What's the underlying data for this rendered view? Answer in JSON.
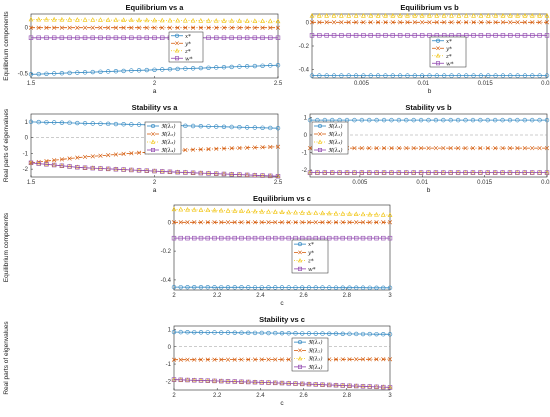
{
  "figure": {
    "colors": [
      "#2E86C1",
      "#D35400",
      "#F1C40F",
      "#8E44AD"
    ],
    "markers": [
      "circle",
      "x",
      "triangle",
      "square"
    ],
    "line_styles": [
      "solid",
      "dashdot",
      "dotted",
      "solid"
    ],
    "zero_line_color": "#999999"
  },
  "chart_data": [
    {
      "type": "line",
      "title": "Equilibrium vs a",
      "xlabel": "a",
      "ylabel": "Equilibrium components",
      "xlim": [
        1.5,
        2.5
      ],
      "ylim": [
        -0.55,
        0.15
      ],
      "xticks": [
        1.5,
        2,
        2.5
      ],
      "xtick_labels": [
        "1.5",
        "2",
        "2.5"
      ],
      "yticks": [
        -0.5,
        0
      ],
      "ytick_labels": [
        "-0.5",
        "0"
      ],
      "zero_line": false,
      "legend_position": "center",
      "series": [
        {
          "name": "x*",
          "x": [
            1.5,
            2.5
          ],
          "y": [
            -0.51,
            -0.41
          ]
        },
        {
          "name": "y*",
          "x": [
            1.5,
            2.5
          ],
          "y": [
            0.0,
            0.0
          ]
        },
        {
          "name": "z*",
          "x": [
            1.5,
            2.5
          ],
          "y": [
            0.09,
            0.07
          ]
        },
        {
          "name": "w*",
          "x": [
            1.5,
            2.5
          ],
          "y": [
            -0.11,
            -0.11
          ]
        }
      ]
    },
    {
      "type": "line",
      "title": "Equilibrium vs b",
      "xlabel": "b",
      "ylabel": "",
      "xlim": [
        0.001,
        0.02
      ],
      "ylim": [
        -0.47,
        0.07
      ],
      "xticks": [
        0.005,
        0.01,
        0.015,
        0.02
      ],
      "xtick_labels": [
        "0.005",
        "0.01",
        "0.015",
        "0.02"
      ],
      "yticks": [
        -0.4,
        -0.2,
        0
      ],
      "ytick_labels": [
        "-0.4",
        "-0.2",
        "0"
      ],
      "zero_line": false,
      "legend_position": "center",
      "series": [
        {
          "name": "x*",
          "x": [
            0.001,
            0.02
          ],
          "y": [
            -0.45,
            -0.45
          ]
        },
        {
          "name": "y*",
          "x": [
            0.001,
            0.02
          ],
          "y": [
            0.0,
            0.0
          ]
        },
        {
          "name": "z*",
          "x": [
            0.001,
            0.02
          ],
          "y": [
            0.055,
            0.055
          ]
        },
        {
          "name": "w*",
          "x": [
            0.001,
            0.02
          ],
          "y": [
            -0.11,
            -0.11
          ]
        }
      ]
    },
    {
      "type": "line",
      "title": "Stability vs a",
      "xlabel": "a",
      "ylabel": "Real parts of eigenvalues",
      "xlim": [
        1.5,
        2.5
      ],
      "ylim": [
        -2.5,
        1.5
      ],
      "xticks": [
        1.5,
        2,
        2.5
      ],
      "xtick_labels": [
        "1.5",
        "2",
        "2.5"
      ],
      "yticks": [
        -2,
        -1,
        0,
        1
      ],
      "ytick_labels": [
        "-2",
        "-1",
        "0",
        "1"
      ],
      "zero_line": true,
      "legend_position": "center-right",
      "series": [
        {
          "name": "ℜ(λ₁)",
          "x": [
            1.5,
            2.5
          ],
          "y": [
            1.0,
            0.6
          ]
        },
        {
          "name": "ℜ(λ₂)",
          "x": [
            1.5,
            1.7,
            1.9,
            2.1,
            2.3,
            2.5
          ],
          "y": [
            -1.6,
            -1.25,
            -1.0,
            -0.8,
            -0.68,
            -0.58
          ]
        },
        {
          "name": "ℜ(λ₃)",
          "x": [
            1.5,
            1.7,
            1.9,
            2.1,
            2.3,
            2.5
          ],
          "y": [
            -1.6,
            -1.9,
            -2.05,
            -2.2,
            -2.32,
            -2.45
          ]
        },
        {
          "name": "ℜ(λ₄)",
          "x": [
            1.5,
            1.7,
            1.9,
            2.1,
            2.3,
            2.5
          ],
          "y": [
            -1.6,
            -1.9,
            -2.05,
            -2.2,
            -2.32,
            -2.45
          ]
        }
      ]
    },
    {
      "type": "line",
      "title": "Stability vs b",
      "xlabel": "b",
      "ylabel": "",
      "xlim": [
        0.001,
        0.02
      ],
      "ylim": [
        -2.4,
        1.2
      ],
      "xticks": [
        0.005,
        0.01,
        0.015,
        0.02
      ],
      "xtick_labels": [
        "0.005",
        "0.01",
        "0.015",
        "0.02"
      ],
      "yticks": [
        -2,
        -1,
        0,
        1
      ],
      "ytick_labels": [
        "-2",
        "-1",
        "0",
        "1"
      ],
      "zero_line": true,
      "legend_position": "center-left",
      "series": [
        {
          "name": "ℜ(λ₁)",
          "x": [
            0.001,
            0.02
          ],
          "y": [
            0.85,
            0.85
          ]
        },
        {
          "name": "ℜ(λ₂)",
          "x": [
            0.001,
            0.02
          ],
          "y": [
            -0.75,
            -0.75
          ]
        },
        {
          "name": "ℜ(λ₃)",
          "x": [
            0.001,
            0.02
          ],
          "y": [
            -2.15,
            -2.15
          ]
        },
        {
          "name": "ℜ(λ₄)",
          "x": [
            0.001,
            0.02
          ],
          "y": [
            -2.15,
            -2.15
          ]
        }
      ]
    },
    {
      "type": "line",
      "title": "Equilibrium vs c",
      "xlabel": "c",
      "ylabel": "Equilibrium components",
      "xlim": [
        2,
        3
      ],
      "ylim": [
        -0.47,
        0.12
      ],
      "xticks": [
        2,
        2.2,
        2.4,
        2.6,
        2.8,
        3
      ],
      "xtick_labels": [
        "2",
        "2.2",
        "2.4",
        "2.6",
        "2.8",
        "3"
      ],
      "yticks": [
        -0.4,
        -0.2,
        0
      ],
      "ytick_labels": [
        "-0.4",
        "-0.2",
        "0"
      ],
      "zero_line": false,
      "legend_position": "center-right",
      "series": [
        {
          "name": "x*",
          "x": [
            2,
            3
          ],
          "y": [
            -0.45,
            -0.455
          ]
        },
        {
          "name": "y*",
          "x": [
            2,
            3
          ],
          "y": [
            0.0,
            0.0
          ]
        },
        {
          "name": "z*",
          "x": [
            2,
            3
          ],
          "y": [
            0.09,
            0.05
          ]
        },
        {
          "name": "w*",
          "x": [
            2,
            3
          ],
          "y": [
            -0.11,
            -0.11
          ]
        }
      ]
    },
    {
      "type": "line",
      "title": "Stability vs c",
      "xlabel": "c",
      "ylabel": "Real parts of eigenvalues",
      "xlim": [
        2,
        3
      ],
      "ylim": [
        -2.5,
        1.2
      ],
      "xticks": [
        2,
        2.2,
        2.4,
        2.6,
        2.8,
        3
      ],
      "xtick_labels": [
        "2",
        "2.2",
        "2.4",
        "2.6",
        "2.8",
        "3"
      ],
      "yticks": [
        -2,
        -1,
        0,
        1
      ],
      "ytick_labels": [
        "-2",
        "-1",
        "0",
        "1"
      ],
      "zero_line": true,
      "legend_position": "center",
      "series": [
        {
          "name": "ℜ(λ₁)",
          "x": [
            2,
            3
          ],
          "y": [
            0.85,
            0.72
          ]
        },
        {
          "name": "ℜ(λ₂)",
          "x": [
            2,
            3
          ],
          "y": [
            -0.75,
            -0.72
          ]
        },
        {
          "name": "ℜ(λ₃)",
          "x": [
            2,
            2.5,
            3
          ],
          "y": [
            -1.9,
            -2.1,
            -2.35
          ]
        },
        {
          "name": "ℜ(λ₄)",
          "x": [
            2,
            2.5,
            3
          ],
          "y": [
            -1.9,
            -2.1,
            -2.35
          ]
        }
      ]
    }
  ]
}
